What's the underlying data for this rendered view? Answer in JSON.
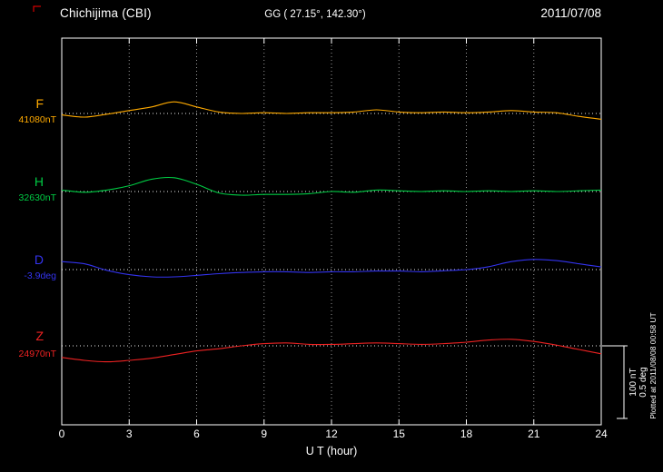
{
  "header": {
    "station": "Chichijima (CBI)",
    "coordinates": "GG ( 27.15°, 142.30°)",
    "date": "2011/07/08"
  },
  "axis": {
    "xlabel": "U T (hour)",
    "xticks": [
      0,
      3,
      6,
      9,
      12,
      15,
      18,
      21,
      24
    ]
  },
  "scale_bar": {
    "line1": "100 nT",
    "line2": "0.5 deg"
  },
  "plotted_note": "Plotted at 2011/08/08 00:58 UT",
  "chart_data": {
    "type": "line",
    "xlabel": "U T (hour)",
    "x_range": [
      0,
      24
    ],
    "grid": "dotted vertical lines every 3 hours; dotted horizontal baseline per component",
    "scale_reference": {
      "nT": 100,
      "deg": 0.5
    },
    "x": [
      0,
      1,
      2,
      3,
      4,
      5,
      6,
      7,
      8,
      9,
      10,
      11,
      12,
      13,
      14,
      15,
      16,
      17,
      18,
      19,
      20,
      21,
      22,
      23,
      24
    ],
    "series": [
      {
        "name": "F",
        "baseline": "41080nT",
        "unit": "nT",
        "color": "#ffaa00",
        "offsets_from_baseline": [
          -2,
          -5,
          -1,
          4,
          9,
          16,
          9,
          2,
          0,
          1,
          0,
          1,
          1,
          2,
          5,
          2,
          1,
          2,
          1,
          2,
          4,
          2,
          1,
          -4,
          -8
        ]
      },
      {
        "name": "H",
        "baseline": "32630nT",
        "unit": "nT",
        "color": "#00cc44",
        "offsets_from_baseline": [
          2,
          -1,
          2,
          8,
          17,
          19,
          10,
          -2,
          -5,
          -4,
          -4,
          -3,
          0,
          -1,
          2,
          1,
          0,
          1,
          0,
          1,
          0,
          1,
          0,
          1,
          2
        ]
      },
      {
        "name": "D",
        "baseline": "-3.9deg",
        "unit": "deg",
        "color": "#3333ee",
        "offsets_from_baseline": [
          0.055,
          0.04,
          -0.005,
          -0.035,
          -0.05,
          -0.05,
          -0.04,
          -0.028,
          -0.02,
          -0.015,
          -0.015,
          -0.02,
          -0.015,
          -0.015,
          -0.01,
          -0.01,
          -0.015,
          -0.008,
          0.0,
          0.02,
          0.055,
          0.07,
          0.062,
          0.04,
          0.018
        ]
      },
      {
        "name": "Z",
        "baseline": "24970nT",
        "unit": "nT",
        "color": "#ee2222",
        "offsets_from_baseline": [
          -16,
          -20,
          -22,
          -20,
          -17,
          -12,
          -7,
          -4,
          0,
          3,
          4,
          2,
          2,
          3,
          4,
          3,
          2,
          3,
          5,
          8,
          9,
          6,
          1,
          -5,
          -11
        ]
      }
    ]
  }
}
